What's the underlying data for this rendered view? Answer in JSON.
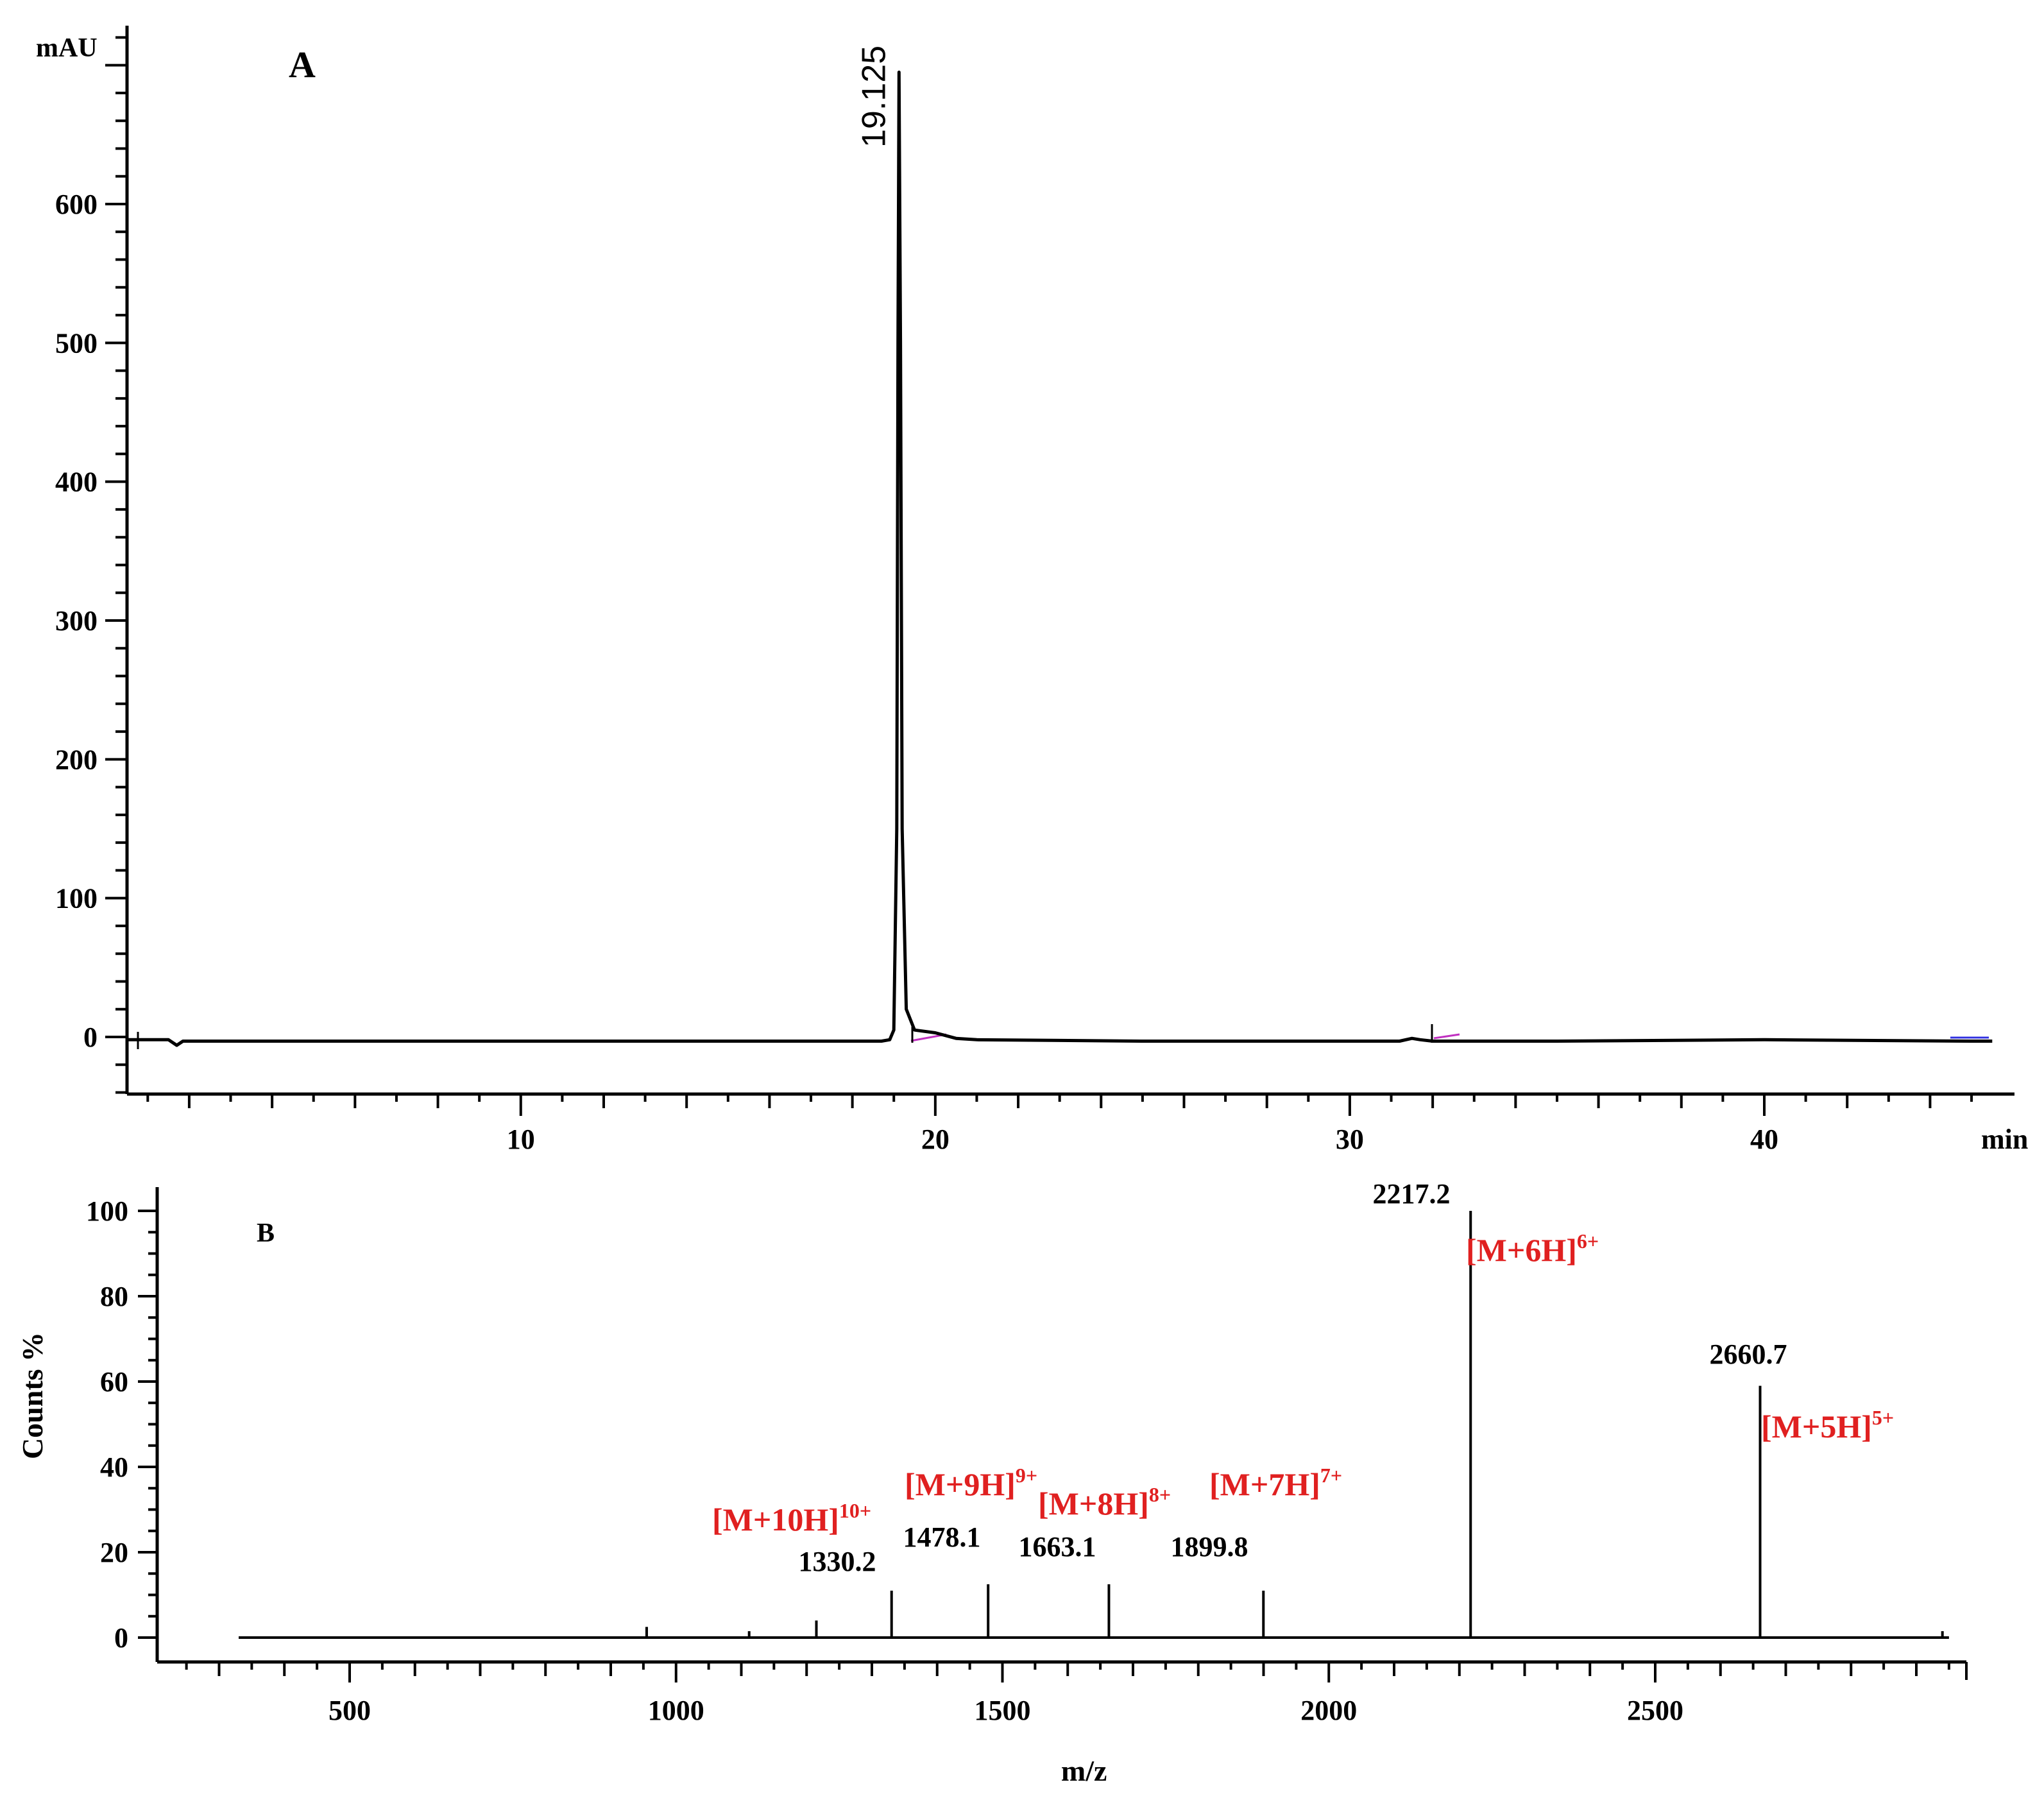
{
  "chart_data": [
    {
      "type": "line",
      "panel_label": "A",
      "xlabel": "min",
      "ylabel": "mAU",
      "xlim": [
        0.5,
        45.5
      ],
      "ylim": [
        -40,
        730
      ],
      "x_ticks": [
        10,
        20,
        30,
        40
      ],
      "y_ticks": [
        0,
        100,
        200,
        300,
        400,
        500,
        600
      ],
      "grid": false,
      "series": [
        {
          "color": "#000000",
          "points": [
            [
              0.5,
              -2
            ],
            [
              1.5,
              -2
            ],
            [
              1.7,
              -6
            ],
            [
              1.85,
              -3
            ],
            [
              2.5,
              -3
            ],
            [
              5,
              -3
            ],
            [
              10,
              -3
            ],
            [
              15,
              -3
            ],
            [
              18,
              -3
            ],
            [
              18.7,
              -3
            ],
            [
              18.9,
              -2
            ],
            [
              19.0,
              5
            ],
            [
              19.07,
              150
            ],
            [
              19.1,
              500
            ],
            [
              19.125,
              695
            ],
            [
              19.16,
              500
            ],
            [
              19.2,
              150
            ],
            [
              19.3,
              20
            ],
            [
              19.5,
              5
            ],
            [
              20.0,
              3
            ],
            [
              20.5,
              -1
            ],
            [
              21,
              -2
            ],
            [
              25,
              -3
            ],
            [
              30,
              -3
            ],
            [
              31.2,
              -3
            ],
            [
              31.5,
              -1
            ],
            [
              31.7,
              -2
            ],
            [
              32,
              -3
            ],
            [
              35,
              -3
            ],
            [
              40,
              -2
            ],
            [
              45,
              -3
            ],
            [
              45.5,
              -3
            ]
          ]
        }
      ],
      "peak_annotations": [
        {
          "x": 19.125,
          "label": "19.125"
        }
      ]
    },
    {
      "type": "line",
      "panel_label": "B",
      "xlabel": "m/z",
      "ylabel": "Counts %",
      "xlim": [
        200,
        3000
      ],
      "ylim": [
        -5,
        105
      ],
      "x_ticks": [
        500,
        1000,
        1500,
        2000,
        2500
      ],
      "y_ticks": [
        0,
        20,
        40,
        60,
        80,
        100
      ],
      "grid": false,
      "range": [
        330,
        2950
      ],
      "peaks": [
        {
          "mz": 955,
          "intensity": 2.5
        },
        {
          "mz": 1112,
          "intensity": 1.5
        },
        {
          "mz": 1215,
          "intensity": 4
        },
        {
          "mz": 1330.2,
          "intensity": 11
        },
        {
          "mz": 1478.1,
          "intensity": 12.5
        },
        {
          "mz": 1663.1,
          "intensity": 12.5
        },
        {
          "mz": 1899.8,
          "intensity": 11
        },
        {
          "mz": 2217.2,
          "intensity": 100
        },
        {
          "mz": 2660.7,
          "intensity": 59
        },
        {
          "mz": 2940,
          "intensity": 1.5
        }
      ],
      "annotations": [
        {
          "value": "1330.2",
          "ion": "[M+10H]",
          "charge": "10+"
        },
        {
          "value": "1478.1",
          "ion": "[M+9H]",
          "charge": "9+"
        },
        {
          "value": "1663.1",
          "ion": "[M+8H]",
          "charge": "8+"
        },
        {
          "value": "1899.8",
          "ion": "[M+7H]",
          "charge": "7+"
        },
        {
          "value": "2217.2",
          "ion": "[M+6H]",
          "charge": "6+"
        },
        {
          "value": "2660.7",
          "ion": "[M+5H]",
          "charge": "5+"
        }
      ]
    }
  ]
}
